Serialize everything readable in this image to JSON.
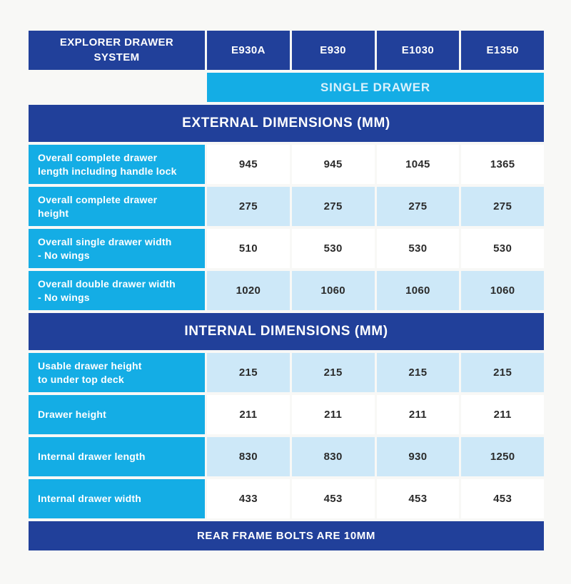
{
  "header": {
    "title": "EXPLORER DRAWER\nSYSTEM",
    "columns": [
      "E930A",
      "E930",
      "E1030",
      "E1350"
    ],
    "subheader": "SINGLE DRAWER"
  },
  "sections": [
    {
      "title": "EXTERNAL DIMENSIONS (MM)",
      "rows": [
        {
          "label": "Overall complete drawer\nlength including handle lock",
          "values": [
            "945",
            "945",
            "1045",
            "1365"
          ]
        },
        {
          "label": "Overall complete drawer\nheight",
          "values": [
            "275",
            "275",
            "275",
            "275"
          ]
        },
        {
          "label": "Overall single drawer width\n- No wings",
          "values": [
            "510",
            "530",
            "530",
            "530"
          ]
        },
        {
          "label": "Overall double drawer width\n- No wings",
          "values": [
            "1020",
            "1060",
            "1060",
            "1060"
          ]
        }
      ]
    },
    {
      "title": "INTERNAL DIMENSIONS (MM)",
      "rows": [
        {
          "label": "Usable drawer height\nto under top deck",
          "values": [
            "215",
            "215",
            "215",
            "215"
          ]
        },
        {
          "label": "Drawer height",
          "values": [
            "211",
            "211",
            "211",
            "211"
          ]
        },
        {
          "label": "Internal drawer length",
          "values": [
            "830",
            "830",
            "930",
            "1250"
          ]
        },
        {
          "label": "Internal drawer width",
          "values": [
            "433",
            "453",
            "453",
            "453"
          ]
        }
      ]
    }
  ],
  "footer": {
    "note": "REAR FRAME BOLTS ARE 10MM"
  },
  "colors": {
    "navy": "#21409a",
    "cyan": "#14ade5",
    "light_blue": "#cde8f8",
    "page_background": "#f8f8f6",
    "value_text": "#2b2b2b",
    "subheader_text": "#d9f1fc"
  },
  "chart_data": {
    "type": "table",
    "title": "EXPLORER DRAWER SYSTEM",
    "subtitle": "SINGLE DRAWER",
    "columns": [
      "E930A",
      "E930",
      "E1030",
      "E1350"
    ],
    "sections": [
      {
        "section": "EXTERNAL DIMENSIONS (MM)",
        "rows": [
          {
            "label": "Overall complete drawer length including handle lock",
            "values": [
              945,
              945,
              1045,
              1365
            ]
          },
          {
            "label": "Overall complete drawer height",
            "values": [
              275,
              275,
              275,
              275
            ]
          },
          {
            "label": "Overall single drawer width - No wings",
            "values": [
              510,
              530,
              530,
              530
            ]
          },
          {
            "label": "Overall double drawer width - No wings",
            "values": [
              1020,
              1060,
              1060,
              1060
            ]
          }
        ]
      },
      {
        "section": "INTERNAL DIMENSIONS (MM)",
        "rows": [
          {
            "label": "Usable drawer height to under top deck",
            "values": [
              215,
              215,
              215,
              215
            ]
          },
          {
            "label": "Drawer height",
            "values": [
              211,
              211,
              211,
              211
            ]
          },
          {
            "label": "Internal drawer length",
            "values": [
              830,
              830,
              930,
              1250
            ]
          },
          {
            "label": "Internal drawer width",
            "values": [
              433,
              453,
              453,
              453
            ]
          }
        ]
      }
    ],
    "footnote": "REAR FRAME BOLTS ARE 10MM"
  }
}
